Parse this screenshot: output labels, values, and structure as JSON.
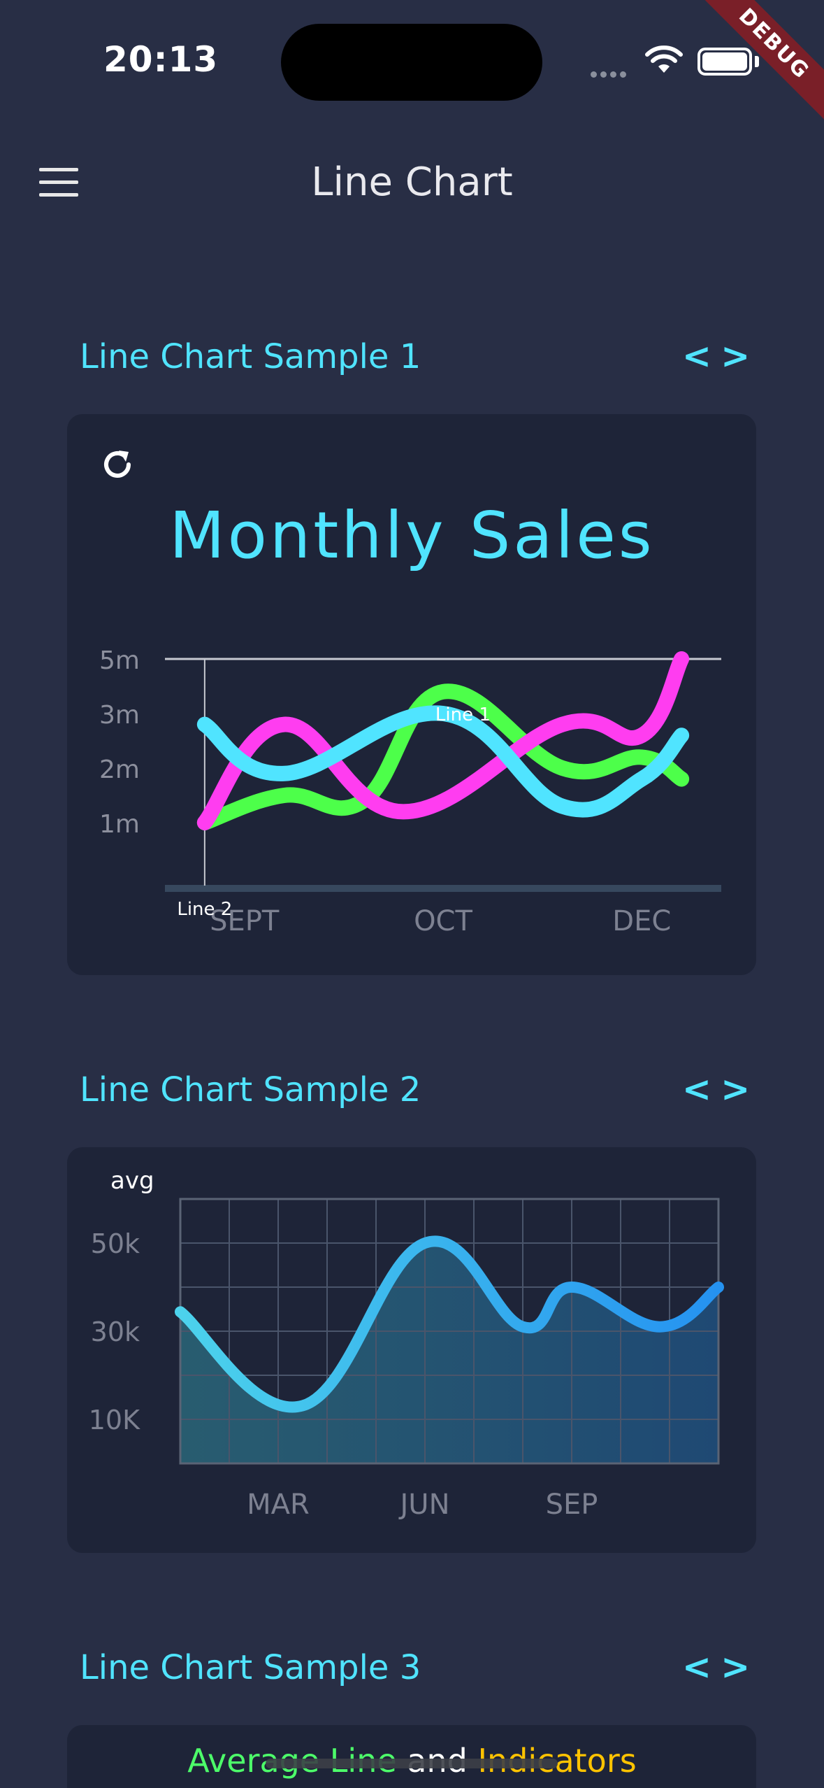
{
  "status_bar": {
    "time": "20:13"
  },
  "debug_banner": "DEBUG",
  "app_bar": {
    "title": "Line Chart",
    "menu_icon": "hamburger-menu-icon"
  },
  "sections": [
    {
      "title": "Line Chart Sample 1",
      "code_icon": "code-icon"
    },
    {
      "title": "Line Chart Sample 2",
      "code_icon": "code-icon"
    },
    {
      "title": "Line Chart Sample 3",
      "code_icon": "code-icon"
    }
  ],
  "chart3_title": {
    "part1": "Average Line",
    "part2": " and ",
    "part3": "Indicators"
  },
  "colors": {
    "accent": "#50e4ff",
    "bg": "#282e45",
    "card": "#1e2438",
    "pink": "#ff3df0",
    "green": "#4dff4a",
    "cyan": "#50e4ff"
  },
  "chart_data": [
    {
      "type": "line",
      "title": "Monthly Sales",
      "x_tick_labels": [
        "SEPT",
        "OCT",
        "DEC"
      ],
      "y_tick_labels": [
        "1m",
        "2m",
        "3m",
        "5m"
      ],
      "x": [
        1,
        3,
        5,
        7,
        8,
        10,
        12,
        13
      ],
      "xlim": [
        0,
        14
      ],
      "ylim": [
        0,
        4
      ],
      "series": [
        {
          "name": "",
          "color": "#4dff4a",
          "x": [
            1,
            3,
            5,
            7,
            10,
            12,
            13
          ],
          "values": [
            1,
            1.5,
            1.4,
            3.4,
            2,
            2.2,
            1.8
          ]
        },
        {
          "name": "",
          "color": "#ff3df0",
          "x": [
            1,
            3,
            6,
            10,
            12,
            13
          ],
          "values": [
            1,
            2.8,
            1.2,
            2.8,
            2.6,
            4.0
          ]
        },
        {
          "name": "",
          "color": "#50e4ff",
          "x": [
            1,
            3,
            7,
            10,
            12,
            13
          ],
          "values": [
            2.8,
            1.9,
            3,
            1.3,
            1.8,
            2.6
          ]
        }
      ],
      "tooltips": [
        {
          "label": "Line 1"
        },
        {
          "label": "Line 2"
        }
      ],
      "grid": false,
      "legend": "none"
    },
    {
      "type": "area",
      "y_axis_title": "avg",
      "x_tick_labels": [
        "MAR",
        "JUN",
        "SEP"
      ],
      "y_tick_labels": [
        "10K",
        "30k",
        "50k"
      ],
      "x": [
        0,
        2.5,
        5,
        7,
        8,
        9.8,
        11
      ],
      "values": [
        3.44,
        1.31,
        5,
        3.1,
        4,
        3.1,
        4
      ],
      "xlim": [
        0,
        11
      ],
      "ylim": [
        0,
        6
      ],
      "grid": true,
      "legend": "none"
    }
  ]
}
